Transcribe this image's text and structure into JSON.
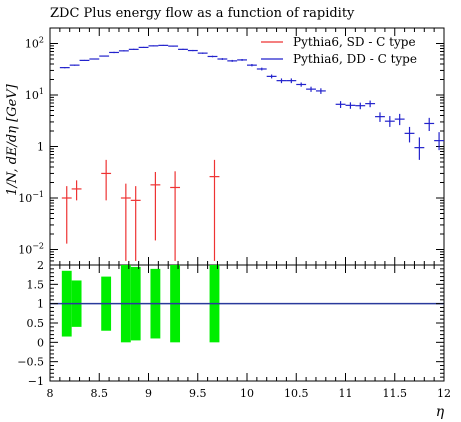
{
  "chart_data": [
    {
      "type": "scatter",
      "title": "ZDC Plus energy flow as a function of rapidity",
      "ylabel": "1/N, dE/dη [GeV]",
      "xlabel": "",
      "xlim": [
        8,
        12
      ],
      "ylog": true,
      "ylim": [
        0.005,
        200
      ],
      "yticks": [
        {
          "value": 0.01,
          "base": "10",
          "exp": "−2"
        },
        {
          "value": 0.1,
          "base": "10",
          "exp": "−1"
        },
        {
          "value": 1,
          "base": "1",
          "exp": ""
        },
        {
          "value": 10,
          "base": "10",
          "exp": "1"
        },
        {
          "value": 100,
          "base": "10",
          "exp": "2"
        }
      ],
      "legend": {
        "placement": "top-right"
      },
      "series": [
        {
          "name": "Pythia6, SD - C type",
          "color": "#ee3333",
          "points": [
            {
              "x": 8.17,
              "y": 0.1,
              "ylo": 0.013,
              "yhi": 0.17,
              "xw": 0.05
            },
            {
              "x": 8.27,
              "y": 0.15,
              "ylo": 0.09,
              "yhi": 0.22,
              "xw": 0.05
            },
            {
              "x": 8.57,
              "y": 0.3,
              "ylo": 0.09,
              "yhi": 0.55,
              "xw": 0.05
            },
            {
              "x": 8.77,
              "y": 0.1,
              "ylo": 0.006,
              "yhi": 0.19,
              "xw": 0.05
            },
            {
              "x": 8.87,
              "y": 0.09,
              "ylo": 0.006,
              "yhi": 0.17,
              "xw": 0.05
            },
            {
              "x": 9.07,
              "y": 0.18,
              "ylo": 0.015,
              "yhi": 0.32,
              "xw": 0.05
            },
            {
              "x": 9.27,
              "y": 0.16,
              "ylo": 0.006,
              "yhi": 0.33,
              "xw": 0.05
            },
            {
              "x": 9.67,
              "y": 0.26,
              "ylo": 0.006,
              "yhi": 0.55,
              "xw": 0.05
            }
          ]
        },
        {
          "name": "Pythia6, DD - C type",
          "color": "#2222cc",
          "points": [
            {
              "x": 8.15,
              "y": 34,
              "ylo": 33,
              "yhi": 35,
              "xw": 0.05
            },
            {
              "x": 8.25,
              "y": 38,
              "ylo": 37,
              "yhi": 39,
              "xw": 0.05
            },
            {
              "x": 8.35,
              "y": 47,
              "ylo": 46,
              "yhi": 48,
              "xw": 0.05
            },
            {
              "x": 8.45,
              "y": 50,
              "ylo": 49,
              "yhi": 51,
              "xw": 0.05
            },
            {
              "x": 8.55,
              "y": 57,
              "ylo": 56,
              "yhi": 58,
              "xw": 0.05
            },
            {
              "x": 8.65,
              "y": 67,
              "ylo": 65,
              "yhi": 69,
              "xw": 0.05
            },
            {
              "x": 8.75,
              "y": 72,
              "ylo": 70,
              "yhi": 74,
              "xw": 0.05
            },
            {
              "x": 8.85,
              "y": 77,
              "ylo": 75,
              "yhi": 79,
              "xw": 0.05
            },
            {
              "x": 8.95,
              "y": 84,
              "ylo": 82,
              "yhi": 86,
              "xw": 0.05
            },
            {
              "x": 9.05,
              "y": 90,
              "ylo": 88,
              "yhi": 92,
              "xw": 0.05
            },
            {
              "x": 9.15,
              "y": 92,
              "ylo": 90,
              "yhi": 94,
              "xw": 0.05
            },
            {
              "x": 9.25,
              "y": 89,
              "ylo": 87,
              "yhi": 91,
              "xw": 0.05
            },
            {
              "x": 9.35,
              "y": 77,
              "ylo": 75,
              "yhi": 79,
              "xw": 0.05
            },
            {
              "x": 9.45,
              "y": 73,
              "ylo": 71,
              "yhi": 75,
              "xw": 0.05
            },
            {
              "x": 9.55,
              "y": 65,
              "ylo": 63,
              "yhi": 67,
              "xw": 0.05
            },
            {
              "x": 9.65,
              "y": 56,
              "ylo": 54,
              "yhi": 58,
              "xw": 0.05
            },
            {
              "x": 9.75,
              "y": 50,
              "ylo": 48,
              "yhi": 52,
              "xw": 0.05
            },
            {
              "x": 9.85,
              "y": 46,
              "ylo": 44,
              "yhi": 48,
              "xw": 0.05
            },
            {
              "x": 9.95,
              "y": 48,
              "ylo": 46,
              "yhi": 50,
              "xw": 0.05
            },
            {
              "x": 10.05,
              "y": 38,
              "ylo": 36,
              "yhi": 40,
              "xw": 0.05
            },
            {
              "x": 10.15,
              "y": 32,
              "ylo": 30,
              "yhi": 34,
              "xw": 0.05
            },
            {
              "x": 10.25,
              "y": 23,
              "ylo": 21,
              "yhi": 25,
              "xw": 0.05
            },
            {
              "x": 10.35,
              "y": 19,
              "ylo": 17,
              "yhi": 21,
              "xw": 0.05
            },
            {
              "x": 10.45,
              "y": 19,
              "ylo": 17,
              "yhi": 21,
              "xw": 0.05
            },
            {
              "x": 10.55,
              "y": 16,
              "ylo": 14.5,
              "yhi": 17.5,
              "xw": 0.05
            },
            {
              "x": 10.65,
              "y": 13,
              "ylo": 11.5,
              "yhi": 14.5,
              "xw": 0.05
            },
            {
              "x": 10.75,
              "y": 12,
              "ylo": 10.5,
              "yhi": 13.5,
              "xw": 0.05
            },
            {
              "x": 10.95,
              "y": 6.6,
              "ylo": 5.6,
              "yhi": 7.6,
              "xw": 0.05
            },
            {
              "x": 11.05,
              "y": 6.3,
              "ylo": 5.4,
              "yhi": 7.2,
              "xw": 0.05
            },
            {
              "x": 11.15,
              "y": 6.2,
              "ylo": 5.3,
              "yhi": 7.1,
              "xw": 0.05
            },
            {
              "x": 11.25,
              "y": 6.8,
              "ylo": 5.8,
              "yhi": 7.8,
              "xw": 0.05
            },
            {
              "x": 11.35,
              "y": 3.8,
              "ylo": 3.0,
              "yhi": 4.6,
              "xw": 0.05
            },
            {
              "x": 11.45,
              "y": 3.1,
              "ylo": 2.4,
              "yhi": 3.9,
              "xw": 0.05
            },
            {
              "x": 11.55,
              "y": 3.4,
              "ylo": 2.6,
              "yhi": 4.3,
              "xw": 0.05
            },
            {
              "x": 11.65,
              "y": 1.8,
              "ylo": 1.2,
              "yhi": 2.4,
              "xw": 0.05
            },
            {
              "x": 11.75,
              "y": 0.95,
              "ylo": 0.55,
              "yhi": 1.5,
              "xw": 0.05
            },
            {
              "x": 11.85,
              "y": 2.8,
              "ylo": 2.0,
              "yhi": 3.6,
              "xw": 0.05
            },
            {
              "x": 11.95,
              "y": 1.3,
              "ylo": 0.85,
              "yhi": 1.9,
              "xw": 0.05
            },
            {
              "x": 12.05,
              "y": 1.15,
              "ylo": 0.7,
              "yhi": 1.7,
              "xw": 0.05
            }
          ]
        }
      ]
    },
    {
      "type": "ratio",
      "xlabel": "η",
      "xlim": [
        8,
        12
      ],
      "ylim": [
        -1,
        2
      ],
      "xticks": [
        "8",
        "8.5",
        "9",
        "9.5",
        "10",
        "10.5",
        "11",
        "11.5",
        "12"
      ],
      "yticks": [
        "−1",
        "−0.5",
        "0",
        "0.5",
        "1",
        "1.5",
        "2"
      ],
      "reference": 1,
      "reference_color": "#2a3a9c",
      "band_color": "#00ee00",
      "bands": [
        {
          "x": 8.17,
          "lo": 0.15,
          "hi": 1.85
        },
        {
          "x": 8.27,
          "lo": 0.4,
          "hi": 1.6
        },
        {
          "x": 8.57,
          "lo": 0.3,
          "hi": 1.7
        },
        {
          "x": 8.77,
          "lo": 0.0,
          "hi": 2.0
        },
        {
          "x": 8.87,
          "lo": 0.05,
          "hi": 1.95
        },
        {
          "x": 9.07,
          "lo": 0.1,
          "hi": 1.9
        },
        {
          "x": 9.27,
          "lo": 0.0,
          "hi": 2.0
        },
        {
          "x": 9.67,
          "lo": 0.0,
          "hi": 2.0
        }
      ]
    }
  ]
}
